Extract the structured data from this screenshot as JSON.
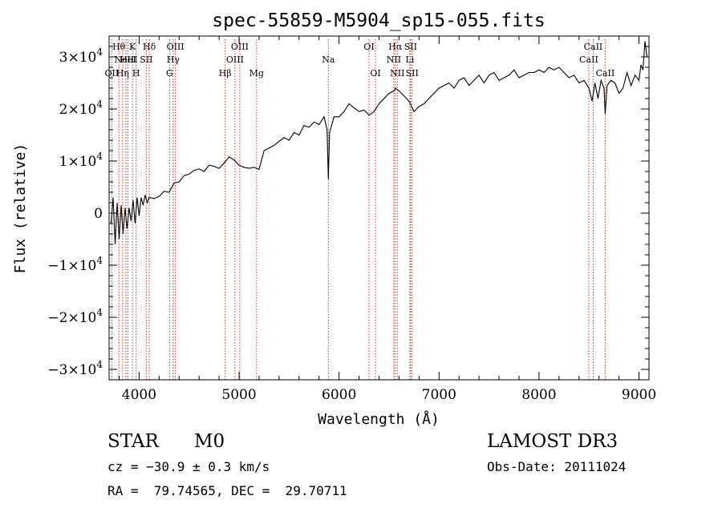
{
  "chart_data": {
    "type": "line",
    "title": "spec-55859-M5904_sp15-055.fits",
    "xlabel": "Wavelength (Å)",
    "ylabel": "Flux (relative)",
    "xlim": [
      3700,
      9100
    ],
    "ylim": [
      -32000,
      34000
    ],
    "grid": false,
    "x_ticks": [
      {
        "value": 4000,
        "label": "4000"
      },
      {
        "value": 5000,
        "label": "5000"
      },
      {
        "value": 6000,
        "label": "6000"
      },
      {
        "value": 7000,
        "label": "7000"
      },
      {
        "value": 8000,
        "label": "8000"
      },
      {
        "value": 9000,
        "label": "9000"
      }
    ],
    "y_ticks": [
      {
        "value": -30000,
        "mant": "−3×10",
        "exp": "4"
      },
      {
        "value": -20000,
        "mant": "−2×10",
        "exp": "4"
      },
      {
        "value": -10000,
        "mant": "−1×10",
        "exp": "4"
      },
      {
        "value": 0,
        "mant": "0",
        "exp": ""
      },
      {
        "value": 10000,
        "mant": "1×10",
        "exp": "4"
      },
      {
        "value": 20000,
        "mant": "2×10",
        "exp": "4"
      },
      {
        "value": 30000,
        "mant": "3×10",
        "exp": "4"
      }
    ],
    "series": [
      {
        "values": [
          [
            3720,
            -2000
          ],
          [
            3740,
            3000
          ],
          [
            3760,
            -6000
          ],
          [
            3780,
            2000
          ],
          [
            3800,
            -5000
          ],
          [
            3820,
            1500
          ],
          [
            3840,
            -4000
          ],
          [
            3860,
            1000
          ],
          [
            3880,
            -3000
          ],
          [
            3900,
            1000
          ],
          [
            3920,
            -1500
          ],
          [
            3940,
            2500
          ],
          [
            3960,
            -2000
          ],
          [
            3980,
            3000
          ],
          [
            4000,
            -500
          ],
          [
            4020,
            3000
          ],
          [
            4040,
            1500
          ],
          [
            4060,
            3500
          ],
          [
            4080,
            2000
          ],
          [
            4100,
            3000
          ],
          [
            4150,
            2800
          ],
          [
            4200,
            3200
          ],
          [
            4250,
            4200
          ],
          [
            4300,
            4000
          ],
          [
            4350,
            5800
          ],
          [
            4400,
            6000
          ],
          [
            4450,
            7200
          ],
          [
            4500,
            7500
          ],
          [
            4550,
            8200
          ],
          [
            4600,
            8500
          ],
          [
            4650,
            8000
          ],
          [
            4700,
            9200
          ],
          [
            4750,
            9000
          ],
          [
            4800,
            8600
          ],
          [
            4850,
            9600
          ],
          [
            4900,
            10800
          ],
          [
            4950,
            10200
          ],
          [
            5000,
            9200
          ],
          [
            5050,
            8800
          ],
          [
            5100,
            8600
          ],
          [
            5150,
            8800
          ],
          [
            5200,
            8400
          ],
          [
            5250,
            12000
          ],
          [
            5300,
            12500
          ],
          [
            5350,
            13000
          ],
          [
            5400,
            13800
          ],
          [
            5450,
            14500
          ],
          [
            5500,
            14000
          ],
          [
            5550,
            15500
          ],
          [
            5600,
            15000
          ],
          [
            5650,
            16800
          ],
          [
            5700,
            16500
          ],
          [
            5750,
            17500
          ],
          [
            5800,
            17000
          ],
          [
            5850,
            18500
          ],
          [
            5880,
            16000
          ],
          [
            5893,
            6500
          ],
          [
            5905,
            15500
          ],
          [
            5950,
            18500
          ],
          [
            6000,
            18500
          ],
          [
            6050,
            19500
          ],
          [
            6100,
            21000
          ],
          [
            6150,
            20200
          ],
          [
            6200,
            19500
          ],
          [
            6250,
            19800
          ],
          [
            6300,
            18800
          ],
          [
            6350,
            19500
          ],
          [
            6400,
            21000
          ],
          [
            6450,
            22000
          ],
          [
            6500,
            23000
          ],
          [
            6550,
            23500
          ],
          [
            6563,
            24000
          ],
          [
            6600,
            23500
          ],
          [
            6650,
            22500
          ],
          [
            6700,
            21500
          ],
          [
            6750,
            19500
          ],
          [
            6800,
            20500
          ],
          [
            6850,
            21000
          ],
          [
            6900,
            22000
          ],
          [
            6950,
            23000
          ],
          [
            7000,
            24000
          ],
          [
            7050,
            24500
          ],
          [
            7100,
            25000
          ],
          [
            7150,
            24000
          ],
          [
            7200,
            25500
          ],
          [
            7250,
            26000
          ],
          [
            7300,
            24500
          ],
          [
            7350,
            25500
          ],
          [
            7400,
            26500
          ],
          [
            7450,
            25000
          ],
          [
            7500,
            26500
          ],
          [
            7550,
            27000
          ],
          [
            7600,
            25500
          ],
          [
            7650,
            26000
          ],
          [
            7700,
            26500
          ],
          [
            7750,
            27500
          ],
          [
            7800,
            26000
          ],
          [
            7850,
            26500
          ],
          [
            7900,
            27000
          ],
          [
            7950,
            27000
          ],
          [
            8000,
            27500
          ],
          [
            8050,
            27000
          ],
          [
            8100,
            28000
          ],
          [
            8150,
            27500
          ],
          [
            8200,
            28000
          ],
          [
            8250,
            27000
          ],
          [
            8300,
            26000
          ],
          [
            8350,
            26500
          ],
          [
            8400,
            25000
          ],
          [
            8450,
            25500
          ],
          [
            8500,
            24000
          ],
          [
            8530,
            21500
          ],
          [
            8560,
            25000
          ],
          [
            8590,
            22000
          ],
          [
            8620,
            25500
          ],
          [
            8650,
            24000
          ],
          [
            8662,
            19000
          ],
          [
            8680,
            24500
          ],
          [
            8720,
            25500
          ],
          [
            8760,
            25000
          ],
          [
            8800,
            23000
          ],
          [
            8840,
            24000
          ],
          [
            8880,
            27000
          ],
          [
            8920,
            24500
          ],
          [
            8960,
            26500
          ],
          [
            9000,
            25500
          ],
          [
            9020,
            28500
          ],
          [
            9040,
            27500
          ],
          [
            9060,
            33000
          ],
          [
            9080,
            30000
          ]
        ]
      }
    ],
    "lines": [
      {
        "wl": 3727,
        "label": "OII",
        "row": 3
      },
      {
        "wl": 3798,
        "label": "Hθ",
        "row": 1
      },
      {
        "wl": 3835,
        "label": "Hη",
        "row": 3
      },
      {
        "wl": 3869,
        "label": "NeIII",
        "row": 2
      },
      {
        "wl": 3889,
        "label": "HeI",
        "row": 2
      },
      {
        "wl": 3934,
        "label": "K",
        "row": 1
      },
      {
        "wl": 3970,
        "label": "H",
        "row": 3
      },
      {
        "wl": 4072,
        "label": "SII",
        "row": 2
      },
      {
        "wl": 4102,
        "label": "Hδ",
        "row": 1
      },
      {
        "wl": 4305,
        "label": "G",
        "row": 3
      },
      {
        "wl": 4341,
        "label": "Hγ",
        "row": 2
      },
      {
        "wl": 4363,
        "label": "OIII",
        "row": 1
      },
      {
        "wl": 4861,
        "label": "Hβ",
        "row": 3
      },
      {
        "wl": 4959,
        "label": "OIII",
        "row": 2
      },
      {
        "wl": 5007,
        "label": "OIII",
        "row": 1
      },
      {
        "wl": 5175,
        "label": "Mg",
        "row": 3
      },
      {
        "wl": 5893,
        "label": "Na",
        "row": 2
      },
      {
        "wl": 6300,
        "label": "OI",
        "row": 1
      },
      {
        "wl": 6364,
        "label": "OI",
        "row": 3
      },
      {
        "wl": 6548,
        "label": "NII",
        "row": 2
      },
      {
        "wl": 6563,
        "label": "Hα",
        "row": 1
      },
      {
        "wl": 6583,
        "label": "NII",
        "row": 3
      },
      {
        "wl": 6708,
        "label": "Li",
        "row": 2
      },
      {
        "wl": 6716,
        "label": "SII",
        "row": 1
      },
      {
        "wl": 6731,
        "label": "SII",
        "row": 3
      },
      {
        "wl": 8498,
        "label": "CaII",
        "row": 2
      },
      {
        "wl": 8542,
        "label": "CaII",
        "row": 1
      },
      {
        "wl": 8662,
        "label": "CaII",
        "row": 3
      }
    ]
  },
  "info": {
    "class": "STAR",
    "subclass": "M0",
    "survey": "LAMOST DR3",
    "cz": "cz = −30.9 ± 0.3 km/s",
    "obs_date": "Obs-Date: 20111024",
    "coords": "RA =  79.74565, DEC =  29.70711"
  }
}
